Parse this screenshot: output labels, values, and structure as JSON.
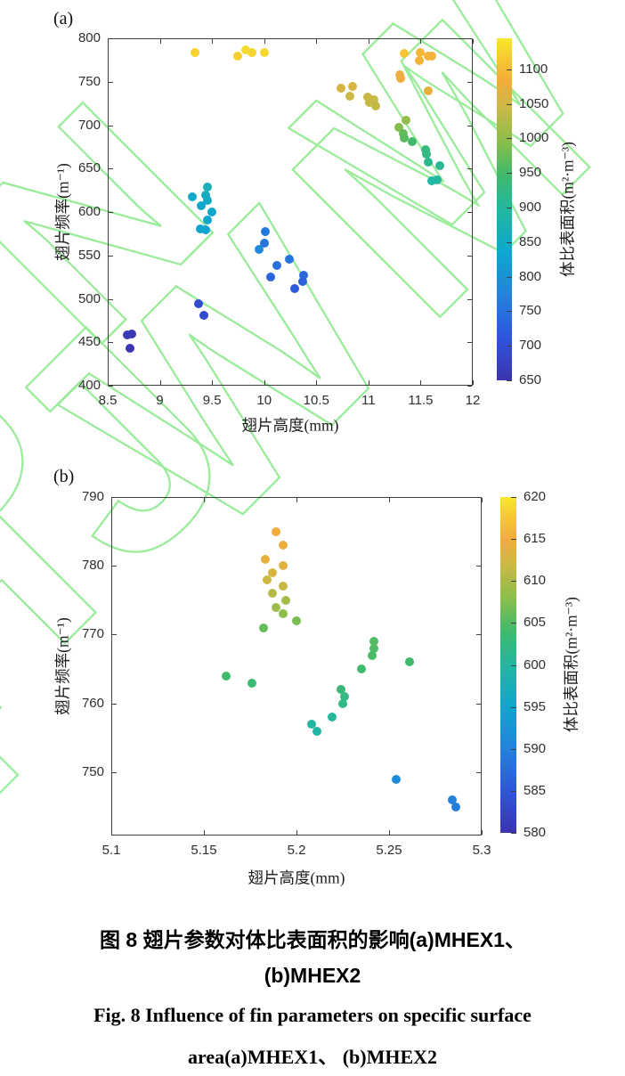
{
  "page": {
    "background": "#ffffff",
    "watermark_color": "#8FE98F"
  },
  "panels": {
    "a": {
      "tag": "(a)"
    },
    "b": {
      "tag": "(b)"
    }
  },
  "colormap": {
    "name": "parula-like",
    "anchors": [
      {
        "t": 0.0,
        "color": "#3B34AE"
      },
      {
        "t": 0.125,
        "color": "#2F55DC"
      },
      {
        "t": 0.25,
        "color": "#2383DC"
      },
      {
        "t": 0.375,
        "color": "#0FA6CF"
      },
      {
        "t": 0.5,
        "color": "#22B7A0"
      },
      {
        "t": 0.6,
        "color": "#3FBA6C"
      },
      {
        "t": 0.7,
        "color": "#8CBE4B"
      },
      {
        "t": 0.8,
        "color": "#CDB844"
      },
      {
        "t": 0.875,
        "color": "#F2AC3C"
      },
      {
        "t": 0.94,
        "color": "#F6C733"
      },
      {
        "t": 1.0,
        "color": "#F8E82B"
      }
    ]
  },
  "caption": {
    "zh_line1": "图 8  翅片参数对体比表面积的影响(a)MHEX1、",
    "zh_line2": "(b)MHEX2",
    "en_line1": "Fig. 8  Influence of fin parameters on specific surface",
    "en_line2": "area(a)MHEX1、 (b)MHEX2"
  },
  "chart_data": [
    {
      "panel": "a",
      "type": "scatter",
      "xlabel": "翅片高度(mm)",
      "ylabel": "翅片频率(m⁻¹)",
      "colorbar_label": "体比表面积(m²·m⁻³)",
      "xlim": [
        8.5,
        12
      ],
      "ylim": [
        400,
        800
      ],
      "clim": [
        650,
        1145
      ],
      "xticks": [
        8.5,
        9,
        9.5,
        10,
        10.5,
        11,
        11.5,
        12
      ],
      "xtick_labels": [
        "8.5",
        "9",
        "9.5",
        "10",
        "10.5",
        "11",
        "11.5",
        "12"
      ],
      "yticks": [
        400,
        450,
        500,
        550,
        600,
        650,
        700,
        750,
        800
      ],
      "ytick_labels": [
        "400",
        "450",
        "500",
        "550",
        "600",
        "650",
        "700",
        "750",
        "800"
      ],
      "cticks": [
        650,
        700,
        750,
        800,
        850,
        900,
        950,
        1000,
        1050,
        1100
      ],
      "ctick_labels": [
        "650",
        "700",
        "750",
        "800",
        "850",
        "900",
        "950",
        "1000",
        "1050",
        "1100"
      ],
      "points": [
        {
          "x": 9.34,
          "y": 784,
          "c": 1126
        },
        {
          "x": 9.75,
          "y": 780,
          "c": 1122
        },
        {
          "x": 9.82,
          "y": 787,
          "c": 1132
        },
        {
          "x": 9.88,
          "y": 784,
          "c": 1128
        },
        {
          "x": 10.0,
          "y": 784,
          "c": 1130
        },
        {
          "x": 11.34,
          "y": 783,
          "c": 1112
        },
        {
          "x": 11.5,
          "y": 784,
          "c": 1098
        },
        {
          "x": 11.57,
          "y": 780,
          "c": 1094
        },
        {
          "x": 11.61,
          "y": 779,
          "c": 1092
        },
        {
          "x": 11.49,
          "y": 774,
          "c": 1088
        },
        {
          "x": 11.3,
          "y": 758,
          "c": 1080
        },
        {
          "x": 11.31,
          "y": 754,
          "c": 1078
        },
        {
          "x": 11.57,
          "y": 739,
          "c": 1072
        },
        {
          "x": 10.74,
          "y": 743,
          "c": 1054
        },
        {
          "x": 10.85,
          "y": 745,
          "c": 1056
        },
        {
          "x": 10.82,
          "y": 733,
          "c": 1046
        },
        {
          "x": 10.99,
          "y": 732,
          "c": 1044
        },
        {
          "x": 11.01,
          "y": 726,
          "c": 1040
        },
        {
          "x": 11.05,
          "y": 729,
          "c": 1042
        },
        {
          "x": 11.07,
          "y": 722,
          "c": 1038
        },
        {
          "x": 11.36,
          "y": 706,
          "c": 1000
        },
        {
          "x": 11.29,
          "y": 697,
          "c": 992
        },
        {
          "x": 11.33,
          "y": 690,
          "c": 972
        },
        {
          "x": 11.34,
          "y": 685,
          "c": 965
        },
        {
          "x": 11.42,
          "y": 681,
          "c": 948
        },
        {
          "x": 11.55,
          "y": 672,
          "c": 932
        },
        {
          "x": 11.56,
          "y": 667,
          "c": 928
        },
        {
          "x": 11.57,
          "y": 657,
          "c": 915
        },
        {
          "x": 11.68,
          "y": 653,
          "c": 910
        },
        {
          "x": 11.61,
          "y": 636,
          "c": 896
        },
        {
          "x": 11.66,
          "y": 637,
          "c": 898
        },
        {
          "x": 9.46,
          "y": 629,
          "c": 868
        },
        {
          "x": 9.44,
          "y": 619,
          "c": 858
        },
        {
          "x": 9.31,
          "y": 617,
          "c": 845
        },
        {
          "x": 9.46,
          "y": 613,
          "c": 850
        },
        {
          "x": 9.4,
          "y": 607,
          "c": 842
        },
        {
          "x": 9.5,
          "y": 600,
          "c": 840
        },
        {
          "x": 9.46,
          "y": 591,
          "c": 836
        },
        {
          "x": 9.39,
          "y": 581,
          "c": 830
        },
        {
          "x": 9.44,
          "y": 579,
          "c": 828
        },
        {
          "x": 10.01,
          "y": 577,
          "c": 760
        },
        {
          "x": 10.0,
          "y": 564,
          "c": 755
        },
        {
          "x": 9.95,
          "y": 557,
          "c": 785
        },
        {
          "x": 10.12,
          "y": 538,
          "c": 748
        },
        {
          "x": 10.24,
          "y": 546,
          "c": 752
        },
        {
          "x": 10.06,
          "y": 525,
          "c": 732
        },
        {
          "x": 10.38,
          "y": 527,
          "c": 738
        },
        {
          "x": 10.37,
          "y": 520,
          "c": 730
        },
        {
          "x": 10.29,
          "y": 512,
          "c": 722
        },
        {
          "x": 9.37,
          "y": 494,
          "c": 695
        },
        {
          "x": 9.42,
          "y": 481,
          "c": 690
        },
        {
          "x": 8.69,
          "y": 458,
          "c": 660
        },
        {
          "x": 8.73,
          "y": 459,
          "c": 661
        },
        {
          "x": 8.71,
          "y": 443,
          "c": 654
        }
      ]
    },
    {
      "panel": "b",
      "type": "scatter",
      "xlabel": "翅片高度(mm)",
      "ylabel": "翅片频率(m⁻¹)",
      "colorbar_label": "体比表面积(m²·m⁻³)",
      "xlim": [
        5.1,
        5.3
      ],
      "ylim": [
        740.8,
        790
      ],
      "clim": [
        580,
        620
      ],
      "xticks": [
        5.1,
        5.15,
        5.2,
        5.25,
        5.3
      ],
      "xtick_labels": [
        "5.1",
        "5.15",
        "5.2",
        "5.25",
        "5.3"
      ],
      "yticks": [
        750,
        760,
        770,
        780,
        790
      ],
      "ytick_labels": [
        "750",
        "760",
        "770",
        "780",
        "790"
      ],
      "cticks": [
        580,
        585,
        590,
        595,
        600,
        605,
        610,
        615,
        620
      ],
      "ctick_labels": [
        "580",
        "585",
        "590",
        "595",
        "600",
        "605",
        "610",
        "615",
        "620"
      ],
      "points": [
        {
          "x": 5.189,
          "y": 785,
          "c": 615
        },
        {
          "x": 5.193,
          "y": 783,
          "c": 614.5
        },
        {
          "x": 5.183,
          "y": 781,
          "c": 614
        },
        {
          "x": 5.193,
          "y": 780,
          "c": 613.5
        },
        {
          "x": 5.187,
          "y": 779,
          "c": 613
        },
        {
          "x": 5.184,
          "y": 778,
          "c": 612
        },
        {
          "x": 5.193,
          "y": 777,
          "c": 611.5
        },
        {
          "x": 5.187,
          "y": 776,
          "c": 610.5
        },
        {
          "x": 5.194,
          "y": 775,
          "c": 609.5
        },
        {
          "x": 5.189,
          "y": 774,
          "c": 609
        },
        {
          "x": 5.193,
          "y": 773,
          "c": 608
        },
        {
          "x": 5.2,
          "y": 772,
          "c": 607
        },
        {
          "x": 5.182,
          "y": 771,
          "c": 606
        },
        {
          "x": 5.242,
          "y": 769,
          "c": 605
        },
        {
          "x": 5.242,
          "y": 768,
          "c": 605
        },
        {
          "x": 5.241,
          "y": 767,
          "c": 604.5
        },
        {
          "x": 5.261,
          "y": 766,
          "c": 604
        },
        {
          "x": 5.235,
          "y": 765,
          "c": 604
        },
        {
          "x": 5.162,
          "y": 764,
          "c": 604
        },
        {
          "x": 5.176,
          "y": 763,
          "c": 603.5
        },
        {
          "x": 5.224,
          "y": 762,
          "c": 603
        },
        {
          "x": 5.226,
          "y": 761,
          "c": 602.5
        },
        {
          "x": 5.225,
          "y": 760,
          "c": 602
        },
        {
          "x": 5.219,
          "y": 758,
          "c": 600.5
        },
        {
          "x": 5.208,
          "y": 757,
          "c": 600
        },
        {
          "x": 5.211,
          "y": 756,
          "c": 599.5
        },
        {
          "x": 5.254,
          "y": 749,
          "c": 591
        },
        {
          "x": 5.284,
          "y": 746,
          "c": 590
        },
        {
          "x": 5.286,
          "y": 745,
          "c": 589.5
        }
      ]
    }
  ]
}
